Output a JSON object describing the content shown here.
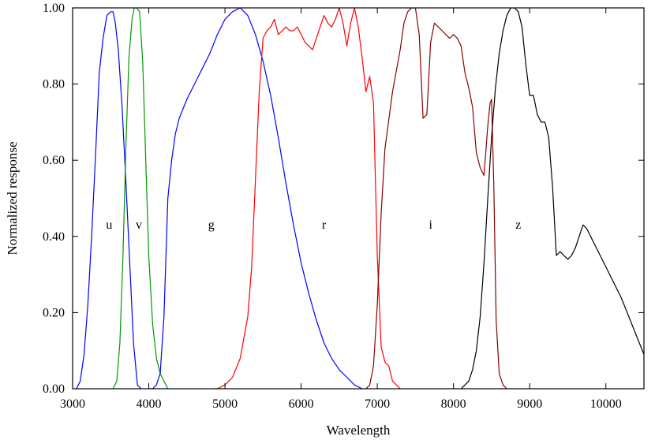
{
  "chart_data": {
    "type": "line",
    "title": "",
    "xlabel": "Wavelength",
    "ylabel": "Normalized response",
    "xlim": [
      3000,
      10500
    ],
    "ylim": [
      0,
      1.0
    ],
    "x_ticks": [
      3000,
      4000,
      5000,
      6000,
      7000,
      8000,
      9000,
      10000
    ],
    "x_tick_labels": [
      "3000",
      "4000",
      "5000",
      "6000",
      "7000",
      "8000",
      "9000",
      "10000"
    ],
    "y_ticks": [
      0,
      0.2,
      0.4,
      0.6,
      0.8,
      1.0
    ],
    "y_tick_labels": [
      "0.00",
      "0.20",
      "0.40",
      "0.60",
      "0.80",
      "1.00"
    ],
    "grid": false,
    "legend": "none",
    "series": [
      {
        "name": "u",
        "color": "#0000ff",
        "label_pos": [
          3480,
          0.42
        ],
        "points": [
          [
            3050,
            0.0
          ],
          [
            3100,
            0.02
          ],
          [
            3150,
            0.09
          ],
          [
            3200,
            0.22
          ],
          [
            3250,
            0.4
          ],
          [
            3300,
            0.61
          ],
          [
            3350,
            0.83
          ],
          [
            3400,
            0.92
          ],
          [
            3450,
            0.98
          ],
          [
            3500,
            0.99
          ],
          [
            3530,
            0.99
          ],
          [
            3560,
            0.96
          ],
          [
            3600,
            0.89
          ],
          [
            3650,
            0.74
          ],
          [
            3700,
            0.54
          ],
          [
            3750,
            0.33
          ],
          [
            3800,
            0.12
          ],
          [
            3850,
            0.01
          ],
          [
            3900,
            0.0
          ]
        ]
      },
      {
        "name": "v",
        "color": "#009900",
        "label_pos": [
          3870,
          0.42
        ],
        "points": [
          [
            3530,
            0.0
          ],
          [
            3580,
            0.02
          ],
          [
            3620,
            0.12
          ],
          [
            3660,
            0.34
          ],
          [
            3700,
            0.64
          ],
          [
            3740,
            0.87
          ],
          [
            3780,
            0.97
          ],
          [
            3810,
            1.0
          ],
          [
            3840,
            1.0
          ],
          [
            3880,
            0.99
          ],
          [
            3920,
            0.86
          ],
          [
            3960,
            0.6
          ],
          [
            4000,
            0.35
          ],
          [
            4050,
            0.17
          ],
          [
            4100,
            0.08
          ],
          [
            4150,
            0.04
          ],
          [
            4200,
            0.02
          ],
          [
            4250,
            0.0
          ]
        ]
      },
      {
        "name": "g",
        "color": "#0000ff",
        "label_pos": [
          4820,
          0.42
        ],
        "points": [
          [
            4000,
            0.0
          ],
          [
            4050,
            0.0
          ],
          [
            4100,
            0.01
          ],
          [
            4150,
            0.04
          ],
          [
            4200,
            0.19
          ],
          [
            4250,
            0.5
          ],
          [
            4300,
            0.6
          ],
          [
            4350,
            0.67
          ],
          [
            4400,
            0.71
          ],
          [
            4500,
            0.76
          ],
          [
            4600,
            0.8
          ],
          [
            4700,
            0.84
          ],
          [
            4800,
            0.88
          ],
          [
            4900,
            0.93
          ],
          [
            5000,
            0.97
          ],
          [
            5100,
            0.99
          ],
          [
            5200,
            1.0
          ],
          [
            5300,
            0.98
          ],
          [
            5400,
            0.93
          ],
          [
            5500,
            0.86
          ],
          [
            5600,
            0.77
          ],
          [
            5700,
            0.66
          ],
          [
            5800,
            0.54
          ],
          [
            5900,
            0.43
          ],
          [
            6000,
            0.33
          ],
          [
            6100,
            0.25
          ],
          [
            6200,
            0.18
          ],
          [
            6300,
            0.12
          ],
          [
            6400,
            0.08
          ],
          [
            6500,
            0.05
          ],
          [
            6600,
            0.03
          ],
          [
            6700,
            0.01
          ],
          [
            6800,
            0.0
          ]
        ]
      },
      {
        "name": "r",
        "color": "#ff0000",
        "label_pos": [
          6300,
          0.42
        ],
        "points": [
          [
            4850,
            0.0
          ],
          [
            4900,
            0.0
          ],
          [
            5000,
            0.01
          ],
          [
            5100,
            0.03
          ],
          [
            5200,
            0.08
          ],
          [
            5300,
            0.19
          ],
          [
            5350,
            0.32
          ],
          [
            5400,
            0.55
          ],
          [
            5450,
            0.78
          ],
          [
            5500,
            0.92
          ],
          [
            5550,
            0.94
          ],
          [
            5600,
            0.95
          ],
          [
            5650,
            0.97
          ],
          [
            5700,
            0.93
          ],
          [
            5750,
            0.94
          ],
          [
            5800,
            0.95
          ],
          [
            5850,
            0.94
          ],
          [
            5900,
            0.94
          ],
          [
            5950,
            0.95
          ],
          [
            6000,
            0.93
          ],
          [
            6050,
            0.91
          ],
          [
            6100,
            0.9
          ],
          [
            6150,
            0.89
          ],
          [
            6200,
            0.92
          ],
          [
            6250,
            0.95
          ],
          [
            6300,
            0.98
          ],
          [
            6350,
            0.96
          ],
          [
            6400,
            0.95
          ],
          [
            6450,
            0.97
          ],
          [
            6500,
            1.0
          ],
          [
            6550,
            0.96
          ],
          [
            6600,
            0.9
          ],
          [
            6650,
            0.96
          ],
          [
            6700,
            1.0
          ],
          [
            6750,
            0.95
          ],
          [
            6800,
            0.87
          ],
          [
            6850,
            0.78
          ],
          [
            6900,
            0.82
          ],
          [
            6950,
            0.75
          ],
          [
            7000,
            0.35
          ],
          [
            7050,
            0.11
          ],
          [
            7100,
            0.07
          ],
          [
            7150,
            0.06
          ],
          [
            7200,
            0.02
          ],
          [
            7250,
            0.01
          ],
          [
            7300,
            0.0
          ]
        ]
      },
      {
        "name": "i",
        "color": "#880000",
        "label_pos": [
          7700,
          0.42
        ],
        "points": [
          [
            6850,
            0.0
          ],
          [
            6900,
            0.01
          ],
          [
            6950,
            0.06
          ],
          [
            7000,
            0.22
          ],
          [
            7050,
            0.46
          ],
          [
            7100,
            0.63
          ],
          [
            7200,
            0.78
          ],
          [
            7300,
            0.89
          ],
          [
            7350,
            0.96
          ],
          [
            7400,
            0.99
          ],
          [
            7450,
            1.0
          ],
          [
            7500,
            1.0
          ],
          [
            7550,
            0.93
          ],
          [
            7600,
            0.71
          ],
          [
            7650,
            0.72
          ],
          [
            7700,
            0.91
          ],
          [
            7750,
            0.96
          ],
          [
            7800,
            0.95
          ],
          [
            7850,
            0.94
          ],
          [
            7900,
            0.93
          ],
          [
            7950,
            0.92
          ],
          [
            8000,
            0.93
          ],
          [
            8050,
            0.92
          ],
          [
            8100,
            0.9
          ],
          [
            8150,
            0.83
          ],
          [
            8200,
            0.79
          ],
          [
            8250,
            0.74
          ],
          [
            8300,
            0.62
          ],
          [
            8350,
            0.58
          ],
          [
            8400,
            0.56
          ],
          [
            8450,
            0.69
          ],
          [
            8480,
            0.75
          ],
          [
            8500,
            0.76
          ],
          [
            8530,
            0.53
          ],
          [
            8560,
            0.18
          ],
          [
            8600,
            0.04
          ],
          [
            8650,
            0.01
          ],
          [
            8700,
            0.0
          ]
        ]
      },
      {
        "name": "z",
        "color": "#000000",
        "label_pos": [
          8850,
          0.42
        ],
        "points": [
          [
            8100,
            0.0
          ],
          [
            8150,
            0.01
          ],
          [
            8200,
            0.02
          ],
          [
            8250,
            0.05
          ],
          [
            8300,
            0.1
          ],
          [
            8350,
            0.19
          ],
          [
            8400,
            0.33
          ],
          [
            8450,
            0.5
          ],
          [
            8500,
            0.66
          ],
          [
            8550,
            0.79
          ],
          [
            8600,
            0.88
          ],
          [
            8650,
            0.94
          ],
          [
            8700,
            0.98
          ],
          [
            8750,
            1.0
          ],
          [
            8800,
            1.0
          ],
          [
            8850,
            0.99
          ],
          [
            8900,
            0.95
          ],
          [
            8950,
            0.85
          ],
          [
            9000,
            0.77
          ],
          [
            9050,
            0.77
          ],
          [
            9100,
            0.72
          ],
          [
            9150,
            0.7
          ],
          [
            9200,
            0.7
          ],
          [
            9250,
            0.66
          ],
          [
            9300,
            0.53
          ],
          [
            9350,
            0.35
          ],
          [
            9400,
            0.36
          ],
          [
            9450,
            0.35
          ],
          [
            9500,
            0.34
          ],
          [
            9550,
            0.35
          ],
          [
            9600,
            0.37
          ],
          [
            9650,
            0.4
          ],
          [
            9700,
            0.43
          ],
          [
            9750,
            0.42
          ],
          [
            9800,
            0.4
          ],
          [
            9900,
            0.36
          ],
          [
            10000,
            0.32
          ],
          [
            10100,
            0.28
          ],
          [
            10200,
            0.24
          ],
          [
            10300,
            0.19
          ],
          [
            10400,
            0.14
          ],
          [
            10500,
            0.09
          ]
        ]
      }
    ]
  }
}
